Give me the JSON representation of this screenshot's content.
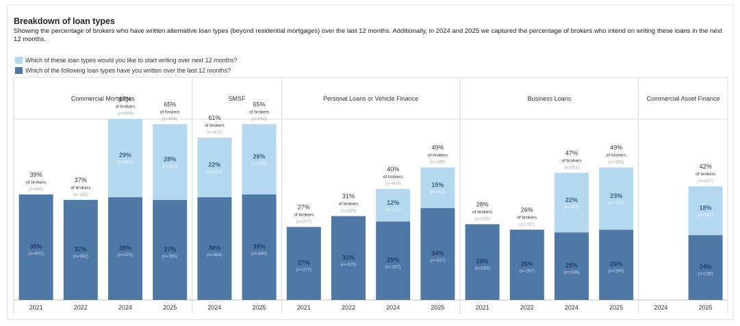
{
  "title": "Breakdown of loan types",
  "subtitle": "Showing the percentage of brokers who have written alternative loan types (beyond residential mortgages) over the last 12 months. Additionally, in 2024 and 2025 we captured the percentage of brokers who intend on writing these loans in the next 12 months.",
  "legend": {
    "intend_label": "Which of these loan types would you like to start writing over next 12 months?",
    "written_label": "Which of the following loan types have you written over the last 12 months?"
  },
  "colors": {
    "intend": "#b4d9ef",
    "written": "#4e79a7",
    "grid": "#d9d9d9"
  },
  "chart_data": {
    "type": "bar",
    "stacked": true,
    "total_suffix": "of brokers",
    "ylim": [
      0,
      72
    ],
    "series": [
      {
        "name": "Which of the following loan types have you written over the last 12 months?",
        "key": "written"
      },
      {
        "name": "Which of these loan types would you like to start writing over next 12 months?",
        "key": "intend"
      }
    ],
    "panels": [
      {
        "name": "Commercial Mortgages",
        "bars": [
          {
            "year": "2021",
            "total": "39%",
            "total_n": "(n=401)",
            "written": 39,
            "written_label": "39%",
            "written_n": "(n=401)"
          },
          {
            "year": "2022",
            "total": "37%",
            "total_n": "(n=382)",
            "written": 37,
            "written_label": "37%",
            "written_n": "(n=382)"
          },
          {
            "year": "2024",
            "total": "67%",
            "total_n": "(n=669)",
            "written": 38,
            "written_label": "38%",
            "written_n": "(n=376)",
            "intend": 29,
            "intend_label": "29%",
            "intend_n": "(n=293)"
          },
          {
            "year": "2025",
            "total": "65%",
            "total_n": "(n=646)",
            "written": 37,
            "written_label": "37%",
            "written_n": "(n=365)",
            "intend": 28,
            "intend_label": "28%",
            "intend_n": "(n=281)"
          }
        ]
      },
      {
        "name": "SMSF",
        "bars": [
          {
            "year": "2024",
            "total": "61%",
            "total_n": "(n=607)",
            "written": 38,
            "written_label": "38%",
            "written_n": "(n=384)",
            "intend": 22,
            "intend_label": "22%",
            "intend_n": "(n=223)"
          },
          {
            "year": "2025",
            "total": "65%",
            "total_n": "(n=650)",
            "written": 39,
            "written_label": "39%",
            "written_n": "(n=390)",
            "intend": 26,
            "intend_label": "26%",
            "intend_n": "(n=260)"
          }
        ]
      },
      {
        "name": "Personal Loans or Vehicle Finance",
        "bars": [
          {
            "year": "2021",
            "total": "27%",
            "total_n": "(n=277)",
            "written": 27,
            "written_label": "27%",
            "written_n": "(n=277)"
          },
          {
            "year": "2022",
            "total": "31%",
            "total_n": "(n=325)",
            "written": 31,
            "written_label": "31%",
            "written_n": "(n=325)"
          },
          {
            "year": "2024",
            "total": "40%",
            "total_n": "(n=404)",
            "written": 29,
            "written_label": "29%",
            "written_n": "(n=287)",
            "intend": 12,
            "intend_label": "12%",
            "intend_n": "(n=117)"
          },
          {
            "year": "2025",
            "total": "49%",
            "total_n": "(n=489)",
            "written": 34,
            "written_label": "34%",
            "written_n": "(n=337)",
            "intend": 15,
            "intend_label": "15%",
            "intend_n": "(n=152)"
          }
        ]
      },
      {
        "name": "Business Loans",
        "bars": [
          {
            "year": "2021",
            "total": "28%",
            "total_n": "(n=283)",
            "written": 28,
            "written_label": "28%",
            "written_n": "(n=283)"
          },
          {
            "year": "2022",
            "total": "26%",
            "total_n": "(n=267)",
            "written": 26,
            "written_label": "26%",
            "written_n": "(n=267)"
          },
          {
            "year": "2024",
            "total": "47%",
            "total_n": "(n=471)",
            "written": 25,
            "written_label": "25%",
            "written_n": "(n=249)",
            "intend": 22,
            "intend_label": "22%",
            "intend_n": "(n=222)"
          },
          {
            "year": "2025",
            "total": "49%",
            "total_n": "(n=485)",
            "written": 26,
            "written_label": "26%",
            "written_n": "(n=260)",
            "intend": 23,
            "intend_label": "23%",
            "intend_n": "(n=225)"
          }
        ]
      },
      {
        "name": "Commercial Asset Finance",
        "bars": [
          {
            "year": "2024"
          },
          {
            "year": "2025",
            "total": "42%",
            "total_n": "(n=417)",
            "written": 24,
            "written_label": "24%",
            "written_n": "(n=235)",
            "intend": 18,
            "intend_label": "18%",
            "intend_n": "(n=182)"
          }
        ]
      }
    ]
  }
}
